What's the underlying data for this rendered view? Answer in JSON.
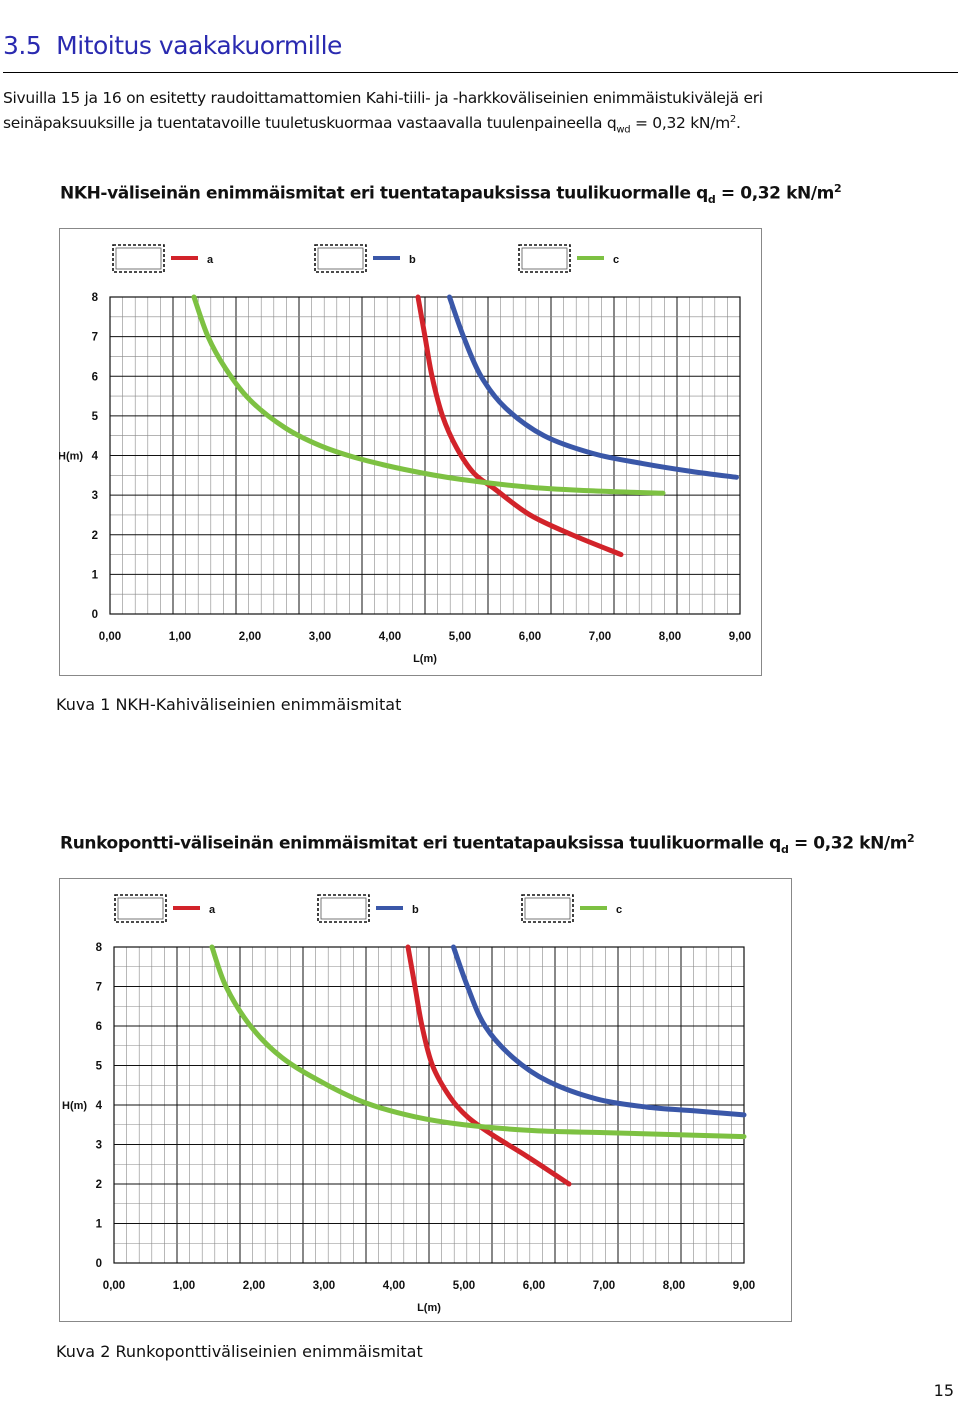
{
  "section": {
    "number": "3.5",
    "title": "Mitoitus vaakakuormille"
  },
  "intro": {
    "line1": "Sivuilla 15 ja 16 on esitetty raudoittamattomien Kahi-tiili- ja -harkkoväliseinien enimmäistukivälejä eri",
    "line2_pre": "seinäpaksuuksille ja tuentatavoille tuuletuskuormaa vastaavalla tuulenpaineella q",
    "line2_sub": "wd",
    "line2_post": " = 0,32 kN/m",
    "line2_sup": "2",
    "line2_end": "."
  },
  "colors": {
    "a": "#d2232a",
    "b": "#3a57a8",
    "c": "#7dc142",
    "heading": "#2a2ab0"
  },
  "page_number": "15",
  "chart_data": [
    {
      "type": "line",
      "title_pre": "NKH-väliseinän enimmäismitat eri tuentatapauksissa tuulikuormalle q",
      "title_sub": "d",
      "title_post": " = 0,32 kN/m",
      "title_sup": "2",
      "caption": "Kuva 1  NKH-Kahiväliseinien enimmäismitat",
      "xlabel": "L(m)",
      "ylabel": "H(m)",
      "xlim": [
        0,
        9
      ],
      "ylim": [
        0,
        8
      ],
      "x_ticks": [
        "0,00",
        "1,00",
        "2,00",
        "3,00",
        "4,00",
        "5,00",
        "6,00",
        "7,00",
        "8,00",
        "9,00"
      ],
      "y_ticks": [
        "0",
        "1",
        "2",
        "3",
        "4",
        "5",
        "6",
        "7",
        "8"
      ],
      "grid": true,
      "legend_position": "top",
      "series": [
        {
          "name": "a",
          "color": "#d2232a",
          "points": [
            [
              4.4,
              8.0
            ],
            [
              4.5,
              7.0
            ],
            [
              4.6,
              6.0
            ],
            [
              4.75,
              5.0
            ],
            [
              4.95,
              4.2
            ],
            [
              5.2,
              3.55
            ],
            [
              5.5,
              3.15
            ],
            [
              6.0,
              2.5
            ],
            [
              6.6,
              2.0
            ],
            [
              7.3,
              1.5
            ]
          ]
        },
        {
          "name": "b",
          "color": "#3a57a8",
          "points": [
            [
              4.85,
              8.0
            ],
            [
              5.05,
              7.0
            ],
            [
              5.3,
              6.0
            ],
            [
              5.65,
              5.2
            ],
            [
              6.2,
              4.5
            ],
            [
              6.9,
              4.05
            ],
            [
              7.6,
              3.8
            ],
            [
              8.3,
              3.6
            ],
            [
              8.95,
              3.45
            ]
          ]
        },
        {
          "name": "c",
          "color": "#7dc142",
          "points": [
            [
              1.2,
              8.0
            ],
            [
              1.4,
              7.0
            ],
            [
              1.65,
              6.2
            ],
            [
              2.0,
              5.4
            ],
            [
              2.5,
              4.7
            ],
            [
              3.0,
              4.25
            ],
            [
              3.5,
              3.95
            ],
            [
              4.2,
              3.65
            ],
            [
              5.0,
              3.4
            ],
            [
              6.0,
              3.2
            ],
            [
              7.0,
              3.1
            ],
            [
              7.9,
              3.05
            ]
          ]
        }
      ]
    },
    {
      "type": "line",
      "title_pre": "Runkopontti-väliseinän enimmäismitat eri tuentatapauksissa tuulikuormalle q",
      "title_sub": "d",
      "title_post": " = 0,32 kN/m",
      "title_sup": "2",
      "caption": "Kuva 2  Runkoponttiväliseinien enimmäismitat",
      "xlabel": "L(m)",
      "ylabel": "H(m)",
      "xlim": [
        0,
        9
      ],
      "ylim": [
        0,
        8
      ],
      "x_ticks": [
        "0,00",
        "1,00",
        "2,00",
        "3,00",
        "4,00",
        "5,00",
        "6,00",
        "7,00",
        "8,00",
        "9,00"
      ],
      "y_ticks": [
        "0",
        "1",
        "2",
        "3",
        "4",
        "5",
        "6",
        "7",
        "8"
      ],
      "grid": true,
      "legend_position": "top",
      "series": [
        {
          "name": "a",
          "color": "#d2232a",
          "points": [
            [
              4.2,
              8.0
            ],
            [
              4.3,
              7.0
            ],
            [
              4.4,
              6.0
            ],
            [
              4.55,
              5.0
            ],
            [
              4.8,
              4.2
            ],
            [
              5.05,
              3.7
            ],
            [
              5.4,
              3.25
            ],
            [
              5.9,
              2.7
            ],
            [
              6.5,
              2.0
            ]
          ]
        },
        {
          "name": "b",
          "color": "#3a57a8",
          "points": [
            [
              4.85,
              8.0
            ],
            [
              5.05,
              7.0
            ],
            [
              5.3,
              6.0
            ],
            [
              5.7,
              5.2
            ],
            [
              6.2,
              4.6
            ],
            [
              6.9,
              4.15
            ],
            [
              7.6,
              3.95
            ],
            [
              8.3,
              3.85
            ],
            [
              9.0,
              3.75
            ]
          ]
        },
        {
          "name": "c",
          "color": "#7dc142",
          "points": [
            [
              1.4,
              8.0
            ],
            [
              1.6,
              7.0
            ],
            [
              1.95,
              6.0
            ],
            [
              2.4,
              5.2
            ],
            [
              3.0,
              4.55
            ],
            [
              3.6,
              4.05
            ],
            [
              4.3,
              3.7
            ],
            [
              5.0,
              3.5
            ],
            [
              6.0,
              3.35
            ],
            [
              7.0,
              3.3
            ],
            [
              8.0,
              3.25
            ],
            [
              9.0,
              3.2
            ]
          ]
        }
      ]
    }
  ]
}
